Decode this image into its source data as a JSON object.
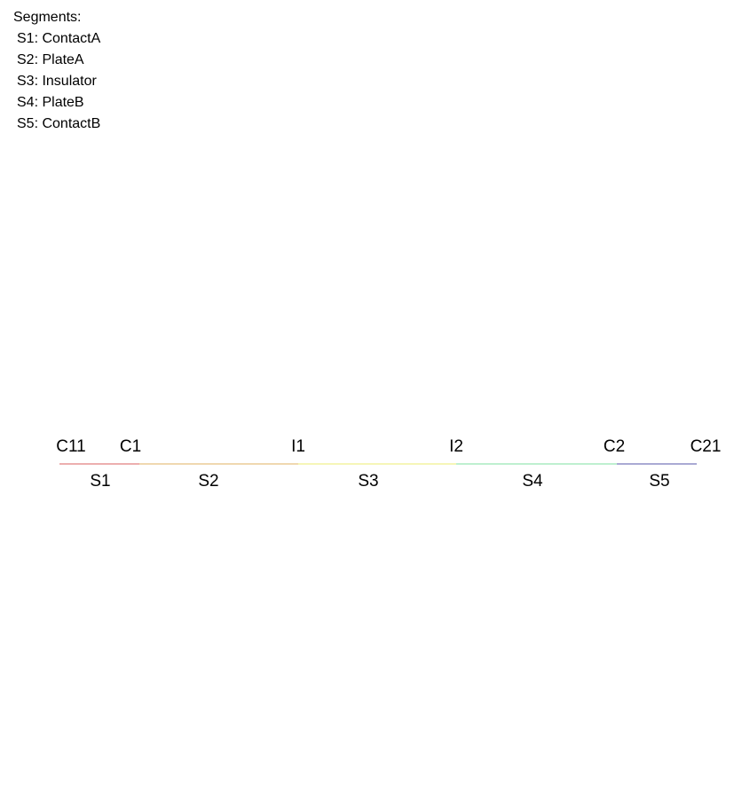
{
  "legend": {
    "title": "Segments:",
    "items": [
      {
        "id": "S1",
        "text": "S1: ContactA"
      },
      {
        "id": "S2",
        "text": "S2: PlateA"
      },
      {
        "id": "S3",
        "text": "S3: Insulator"
      },
      {
        "id": "S4",
        "text": "S4: PlateB"
      },
      {
        "id": "S5",
        "text": "S5: ContactB"
      }
    ]
  },
  "nodes": [
    "C11",
    "C1",
    "I1",
    "I2",
    "C2",
    "C21"
  ],
  "segments": [
    {
      "label": "S1",
      "color": "#d95f5f"
    },
    {
      "label": "S2",
      "color": "#e0b060"
    },
    {
      "label": "S3",
      "color": "#ecec70"
    },
    {
      "label": "S4",
      "color": "#7ee0a0"
    },
    {
      "label": "S5",
      "color": "#5555aa"
    }
  ]
}
